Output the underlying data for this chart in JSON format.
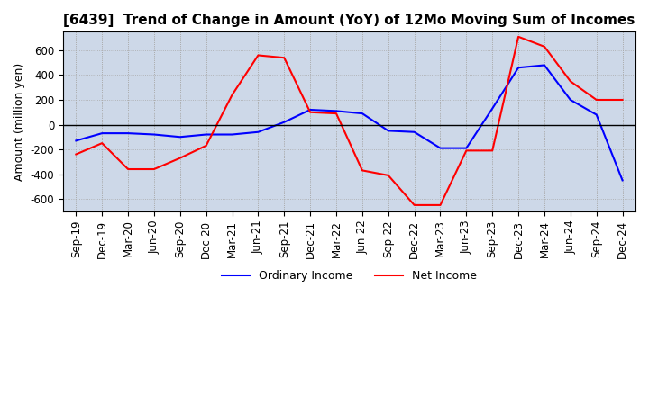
{
  "title": "[6439]  Trend of Change in Amount (YoY) of 12Mo Moving Sum of Incomes",
  "ylabel": "Amount (million yen)",
  "ylim": [
    -700,
    750
  ],
  "yticks": [
    -600,
    -400,
    -200,
    0,
    200,
    400,
    600
  ],
  "x_labels": [
    "Sep-19",
    "Dec-19",
    "Mar-20",
    "Jun-20",
    "Sep-20",
    "Dec-20",
    "Mar-21",
    "Jun-21",
    "Sep-21",
    "Dec-21",
    "Mar-22",
    "Jun-22",
    "Sep-22",
    "Dec-22",
    "Mar-23",
    "Jun-23",
    "Sep-23",
    "Dec-23",
    "Mar-24",
    "Jun-24",
    "Sep-24",
    "Dec-24"
  ],
  "ordinary_income": [
    -130,
    -70,
    -70,
    -80,
    -100,
    -80,
    -80,
    -60,
    20,
    120,
    110,
    90,
    -50,
    -60,
    -190,
    -190,
    130,
    460,
    480,
    200,
    80,
    -450
  ],
  "net_income": [
    -240,
    -150,
    -360,
    -360,
    -270,
    -170,
    240,
    560,
    540,
    100,
    90,
    -370,
    -410,
    -650,
    -650,
    -210,
    -210,
    710,
    630,
    350,
    200,
    200
  ],
  "ordinary_color": "#0000ff",
  "net_color": "#ff0000",
  "bg_color": "#cdd8e8",
  "grid_color": "#aaaaaa",
  "title_fontsize": 11,
  "label_fontsize": 9,
  "tick_fontsize": 8.5
}
